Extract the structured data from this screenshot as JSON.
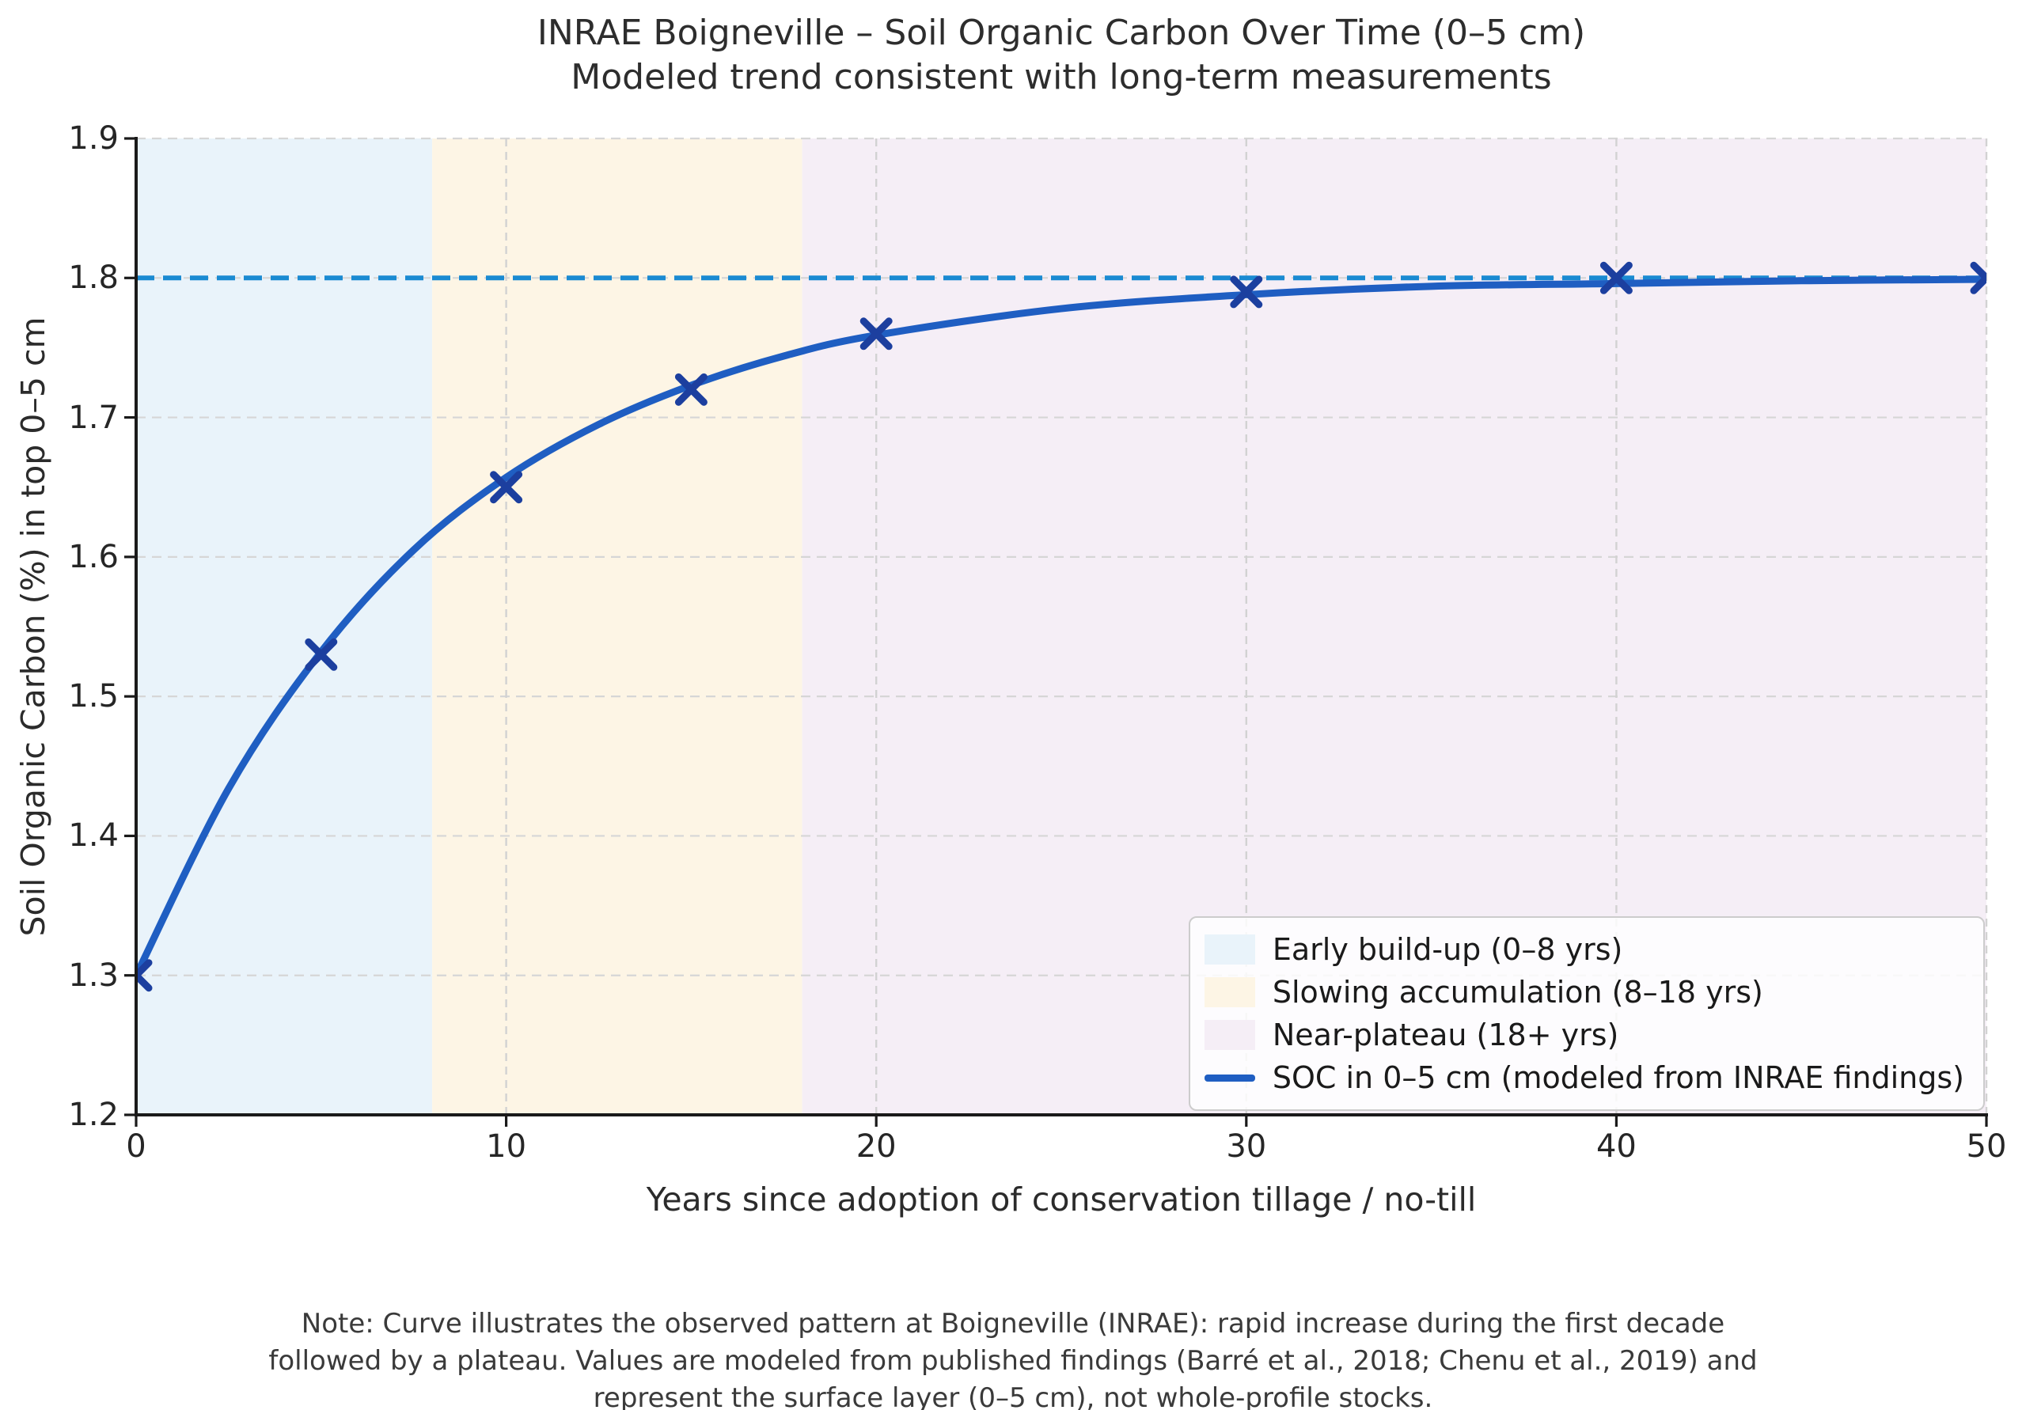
{
  "figure": {
    "title": "INRAE Boigneville – Soil Organic Carbon Over Time (0–5 cm)",
    "subtitle": "Modeled trend consistent with long-term measurements",
    "note_lines": [
      "Note: Curve illustrates the observed pattern at Boigneville (INRAE): rapid increase during the first decade",
      "followed by a plateau. Values are modeled from published findings (Barré et al., 2018; Chenu et al., 2019) and",
      "represent the surface layer (0–5 cm), not whole-profile stocks."
    ]
  },
  "chart_data": {
    "type": "line",
    "title": "INRAE Boigneville – Soil Organic Carbon Over Time (0–5 cm)",
    "subtitle": "Modeled trend consistent with long-term measurements",
    "xlabel": "Years since adoption of conservation tillage / no-till",
    "ylabel": "Soil Organic Carbon (%) in top 0–5 cm",
    "xlim": [
      0,
      50
    ],
    "ylim": [
      1.2,
      1.9
    ],
    "xticks": [
      0,
      10,
      20,
      30,
      40,
      50
    ],
    "yticks": [
      1.2,
      1.3,
      1.4,
      1.5,
      1.6,
      1.7,
      1.8,
      1.9
    ],
    "grid": {
      "on": true,
      "style": "dashed",
      "h_color": "#d6d6d6",
      "v_color": "#d2d2d2"
    },
    "plateau_line": {
      "y": 1.8,
      "style": "dashed",
      "color": "#1a8ad2"
    },
    "regions": [
      {
        "name": "early-build-up",
        "x0": 0,
        "x1": 8,
        "color": "#e9f3fa"
      },
      {
        "name": "slowing-accumulation",
        "x0": 8,
        "x1": 18,
        "color": "#fdf5e5"
      },
      {
        "name": "near-plateau",
        "x0": 18,
        "x1": 50,
        "color": "#f5eef6"
      }
    ],
    "series": [
      {
        "name": "SOC in 0–5 cm (modeled from INRAE findings)",
        "color": "#1f5ec2",
        "marker": "x",
        "marker_color": "#1c3f9f",
        "marker_points": {
          "x": [
            0,
            5,
            10,
            15,
            20,
            30,
            40,
            50
          ],
          "y": [
            1.3,
            1.53,
            1.65,
            1.72,
            1.76,
            1.79,
            1.8,
            1.8
          ]
        },
        "line_points": {
          "x": [
            0,
            2.5,
            5,
            7.5,
            10,
            12.5,
            15,
            17.5,
            20,
            25,
            30,
            35,
            40,
            45,
            50
          ],
          "y": [
            1.3,
            1.434,
            1.532,
            1.605,
            1.657,
            1.695,
            1.723,
            1.744,
            1.759,
            1.778,
            1.788,
            1.794,
            1.796,
            1.798,
            1.799
          ]
        }
      }
    ],
    "legend": {
      "position": "lower right",
      "entries": [
        {
          "swatch": "patch",
          "color": "#e9f3fa",
          "label": "Early build-up (0–8 yrs)"
        },
        {
          "swatch": "patch",
          "color": "#fdf5e5",
          "label": "Slowing accumulation (8–18 yrs)"
        },
        {
          "swatch": "patch",
          "color": "#f5eef6",
          "label": "Near-plateau (18+ yrs)"
        },
        {
          "swatch": "line",
          "color": "#1f5ec2",
          "label": "SOC in 0–5 cm (modeled from INRAE findings)"
        }
      ]
    }
  }
}
